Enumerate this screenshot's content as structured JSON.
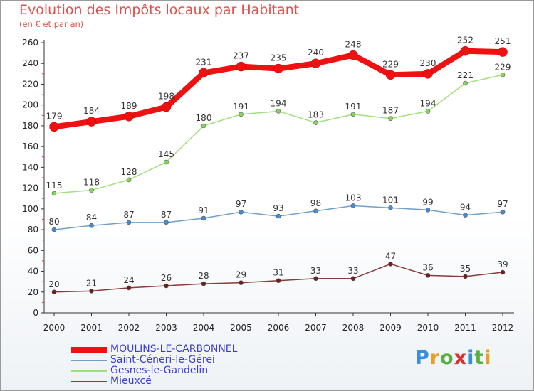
{
  "title": "Evolution des Impôts locaux par Habitant",
  "subtitle": "(en € et par an)",
  "brand": {
    "letters": [
      "P",
      "r",
      "o",
      "x",
      "i",
      "t",
      "i"
    ],
    "letter_colors": [
      "#3a8fd8",
      "#e8a020",
      "#58b040",
      "#d83030",
      "#3a8fd8",
      "#58b040",
      "#e8a020"
    ]
  },
  "chart_data": {
    "type": "line",
    "categories": [
      "2000",
      "2001",
      "2002",
      "2003",
      "2004",
      "2005",
      "2006",
      "2007",
      "2008",
      "2009",
      "2010",
      "2011",
      "2012"
    ],
    "y_ticks": [
      "0",
      "20",
      "40",
      "60",
      "80",
      "100",
      "120",
      "140",
      "160",
      "180",
      "200",
      "220",
      "240",
      "260"
    ],
    "ylim": [
      0,
      260
    ],
    "grid": false,
    "legend_position": "bottom-left",
    "series": [
      {
        "name": "MOULINS-LE-CARBONNEL",
        "color": "#ee1111",
        "point_color": "#ee1111",
        "thick": true,
        "values": [
          179,
          184,
          189,
          198,
          231,
          237,
          235,
          240,
          248,
          229,
          230,
          252,
          251
        ]
      },
      {
        "name": "Saint-Céneri-le-Gérei",
        "color": "#6fa0cc",
        "point_color": "#4a8ad0",
        "thick": false,
        "values": [
          80,
          84,
          87,
          87,
          91,
          97,
          93,
          98,
          103,
          101,
          99,
          94,
          97
        ]
      },
      {
        "name": "Gesnes-le-Gandelin",
        "color": "#9ee07a",
        "point_color": "#86d45a",
        "thick": false,
        "values": [
          115,
          118,
          128,
          145,
          180,
          191,
          194,
          183,
          191,
          187,
          194,
          221,
          229
        ]
      },
      {
        "name": "Mieuxcé",
        "color": "#8a3a3a",
        "point_color": "#6e1f1f",
        "thick": false,
        "values": [
          20,
          21,
          24,
          26,
          28,
          29,
          31,
          33,
          33,
          47,
          36,
          35,
          39
        ]
      }
    ]
  }
}
